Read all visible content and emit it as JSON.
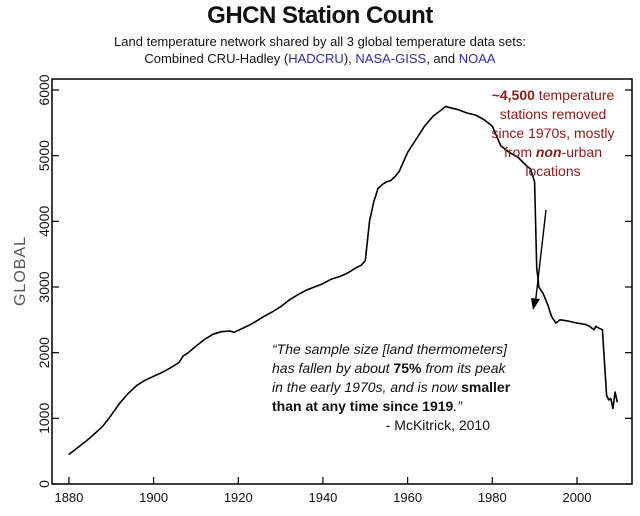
{
  "chart_data": {
    "type": "line",
    "title": "GHCN Station Count",
    "subtitle_line1": "Land temperature network shared by all 3 global temperature data sets:",
    "subtitle_line2_parts": [
      "Combined CRU-Hadley (",
      "HADCRU",
      "), ",
      "NASA-GISS",
      ", and ",
      "NOAA"
    ],
    "ylabel": "GLOBAL",
    "xlim": [
      1876,
      2013
    ],
    "ylim": [
      0,
      6000
    ],
    "xticks": [
      1880,
      1900,
      1920,
      1940,
      1960,
      1980,
      2000
    ],
    "yticks": [
      0,
      1000,
      2000,
      3000,
      4000,
      5000,
      6000
    ],
    "series": [
      {
        "color": "#000000",
        "x": [
          1880,
          1882,
          1884,
          1886,
          1888,
          1890,
          1892,
          1894,
          1896,
          1898,
          1900,
          1902,
          1904,
          1906,
          1907,
          1908,
          1910,
          1912,
          1914,
          1916,
          1918,
          1919,
          1920,
          1922,
          1924,
          1926,
          1928,
          1930,
          1932,
          1934,
          1936,
          1938,
          1940,
          1942,
          1944,
          1946,
          1948,
          1949,
          1950,
          1950.5,
          1951,
          1952,
          1953,
          1954,
          1955,
          1956,
          1957,
          1958,
          1960,
          1962,
          1964,
          1966,
          1968,
          1969,
          1970,
          1972,
          1974,
          1976,
          1978,
          1980,
          1982,
          1984,
          1986,
          1988,
          1989,
          1990,
          1990.5,
          1991,
          1992,
          1993,
          1994,
          1995,
          1996,
          1998,
          2000,
          2002,
          2003,
          2004,
          2004.5,
          2005,
          2006,
          2007,
          2007.5,
          2008,
          2008.5,
          2009,
          2009.5
        ],
        "y": [
          450,
          550,
          650,
          760,
          880,
          1050,
          1230,
          1380,
          1500,
          1580,
          1640,
          1700,
          1770,
          1850,
          1950,
          1990,
          2100,
          2200,
          2280,
          2320,
          2330,
          2310,
          2340,
          2400,
          2470,
          2550,
          2620,
          2700,
          2800,
          2880,
          2950,
          3000,
          3050,
          3120,
          3160,
          3220,
          3300,
          3330,
          3400,
          3700,
          4000,
          4300,
          4500,
          4560,
          4600,
          4620,
          4680,
          4760,
          5050,
          5250,
          5450,
          5600,
          5700,
          5750,
          5730,
          5700,
          5650,
          5620,
          5550,
          5450,
          5150,
          5050,
          4980,
          4850,
          4800,
          4600,
          3300,
          3000,
          2900,
          2750,
          2550,
          2450,
          2500,
          2480,
          2450,
          2430,
          2400,
          2350,
          2400,
          2380,
          2350,
          1350,
          1280,
          1300,
          1150,
          1400,
          1250
        ]
      }
    ],
    "annotation": {
      "line1_bold": "~4,500",
      "line1_rest": " temperature",
      "line2": "stations removed",
      "line3": "since 1970s, mostly",
      "line4_pre": "from ",
      "line4_ital": "non",
      "line4_post": "-urban",
      "line5": "locations"
    },
    "quote": {
      "l1": "“The sample size [land thermometers]",
      "l2_pre": "has fallen by about ",
      "l2_bold": "75%",
      "l2_post": " from its peak",
      "l3": "in the early 1970s, and is now ",
      "l3_bold": "smaller",
      "l4_bold": "than at any time since 1919",
      "l4_post": ".”",
      "source": "- McKitrick, 2010"
    }
  }
}
